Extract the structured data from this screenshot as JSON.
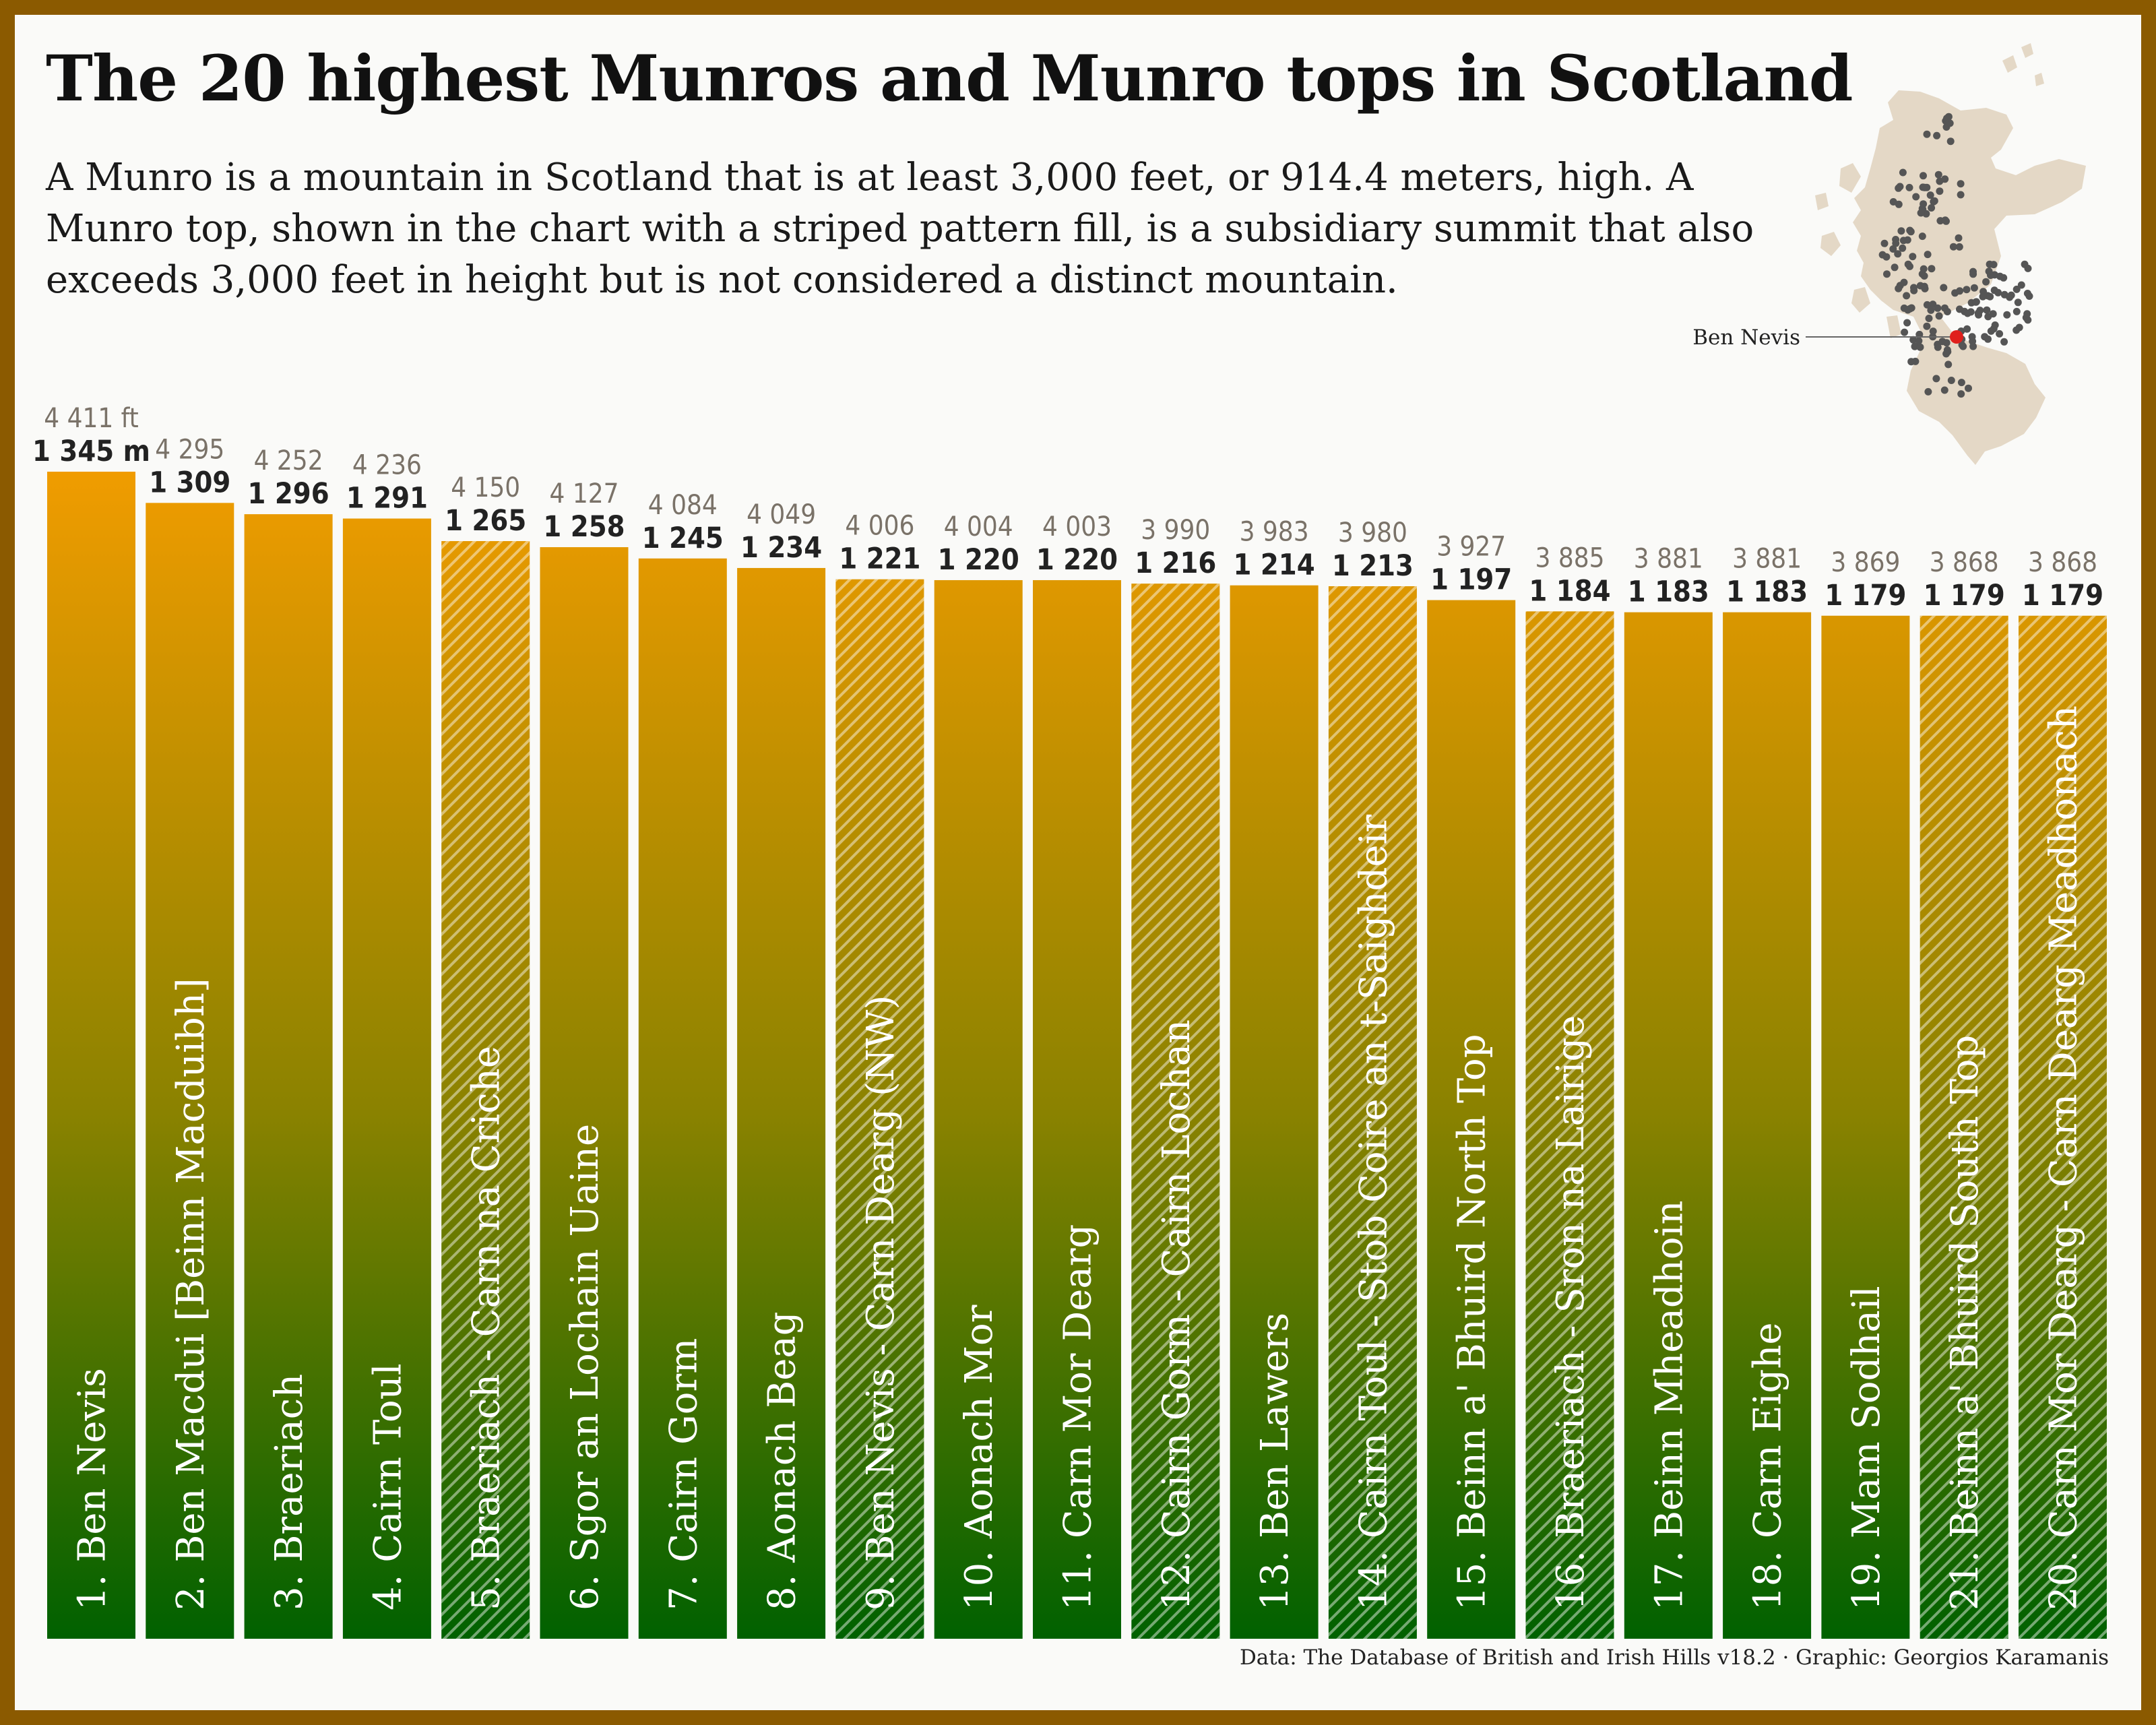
{
  "title": "The 20 highest Munros and Munro tops in Scotland",
  "subtitle": "A Munro is a mountain in Scotland that is at least 3,000 feet, or 914.4 meters, high. A Munro top, shown in the chart with a striped pattern fill, is a subsidiary summit that also exceeds 3,000 feet in height but is not considered a distinct mountain.",
  "caption": "Data: The Database of British and Irish Hills v18.2 · Graphic: Georgios Karamanis",
  "map": {
    "highlight_label": "Ben Nevis",
    "highlight_color": "#e0201c"
  },
  "colors": {
    "bar_top": "#f09c00",
    "bar_bottom": "#006100",
    "frame": "#8b5a00"
  },
  "chart_data": {
    "type": "bar",
    "title": "The 20 highest Munros and Munro tops in Scotland",
    "unit_labels": {
      "feet": "ft",
      "meters": "m"
    },
    "categories": [
      "1. Ben Nevis",
      "2. Ben Macdui [Beinn Macduibh]",
      "3. Braeriach",
      "4. Cairn Toul",
      "5. Braeriach - Carn na Criche",
      "6. Sgor an Lochain Uaine",
      "7. Cairn Gorm",
      "8. Aonach Beag",
      "9. Ben Nevis - Carn Dearg (NW)",
      "10. Aonach Mor",
      "11. Carn Mor Dearg",
      "12. Cairn Gorm - Cairn Lochan",
      "13. Ben Lawers",
      "14. Cairn Toul - Stob Coire an t-Saighdeir",
      "15. Beinn a' Bhuird North Top",
      "16. Braeriach - Sron na Lairige",
      "17. Beinn Mheadhoin",
      "18. Carn Eighe",
      "19. Mam Sodhail",
      "21. Beinn a' Bhuird South Top",
      "20. Carn Mor Dearg - Carn Dearg Meadhonach"
    ],
    "height_m": [
      1345,
      1309,
      1296,
      1291,
      1265,
      1258,
      1245,
      1234,
      1221,
      1220,
      1220,
      1216,
      1214,
      1213,
      1197,
      1184,
      1183,
      1183,
      1179,
      1179,
      1179
    ],
    "height_m_labels": [
      "1 345 m",
      "1 309",
      "1 296",
      "1 291",
      "1 265",
      "1 258",
      "1 245",
      "1 234",
      "1 221",
      "1 220",
      "1 220",
      "1 216",
      "1 214",
      "1 213",
      "1 197",
      "1 184",
      "1 183",
      "1 183",
      "1 179",
      "1 179",
      "1 179"
    ],
    "height_ft_labels": [
      "4 411 ft",
      "4 295",
      "4 252",
      "4 236",
      "4 150",
      "4 127",
      "4 084",
      "4 049",
      "4 006",
      "4 004",
      "4 003",
      "3 990",
      "3 983",
      "3 980",
      "3 927",
      "3 885",
      "3 881",
      "3 881",
      "3 869",
      "3 868",
      "3 868"
    ],
    "is_munro_top": [
      false,
      false,
      false,
      false,
      true,
      false,
      false,
      false,
      true,
      false,
      false,
      true,
      false,
      true,
      false,
      true,
      false,
      false,
      false,
      true,
      true
    ],
    "ylim": [
      0,
      1345
    ]
  }
}
